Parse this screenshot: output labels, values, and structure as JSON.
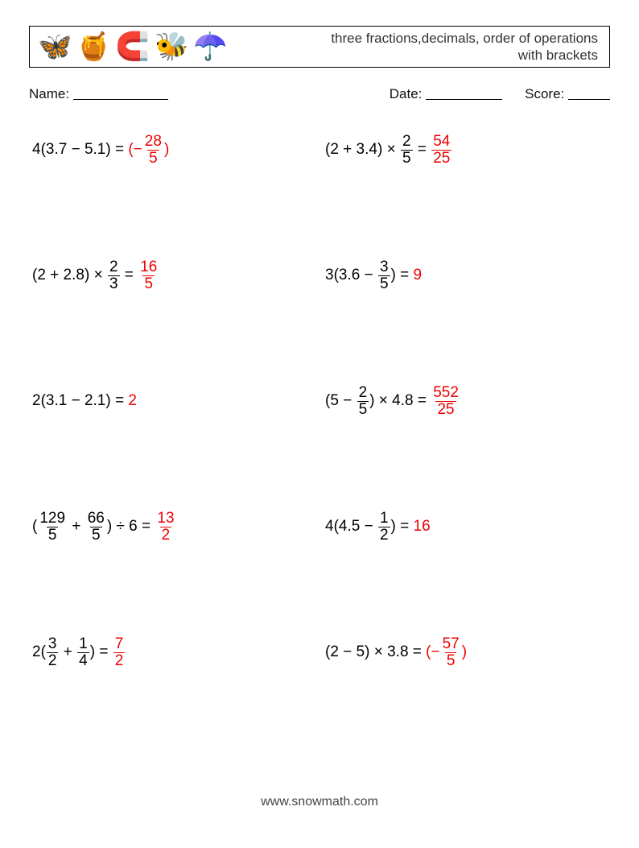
{
  "header": {
    "icons": [
      "🦋",
      "🍯",
      "🧲",
      "🐝",
      "☂️"
    ],
    "title_line1": "three fractions,decimals, order of operations",
    "title_line2": "with brackets"
  },
  "info": {
    "name_label": "Name:",
    "date_label": "Date:",
    "score_label": "Score:",
    "name_blank_width": 118,
    "date_blank_width": 95,
    "score_blank_width": 52
  },
  "colors": {
    "answer": "#ee0000",
    "text": "#000000",
    "background": "#ffffff"
  },
  "problems": [
    {
      "left": [
        {
          "t": "text",
          "v": "4(3.7 − 5.1) = "
        }
      ],
      "answer": [
        {
          "t": "text",
          "v": "(−"
        },
        {
          "t": "frac",
          "n": "28",
          "d": "5"
        },
        {
          "t": "text",
          "v": ")"
        }
      ]
    },
    {
      "left": [
        {
          "t": "text",
          "v": "(2 + 3.4) × "
        },
        {
          "t": "frac",
          "n": "2",
          "d": "5"
        },
        {
          "t": "text",
          "v": " = "
        }
      ],
      "answer": [
        {
          "t": "frac",
          "n": "54",
          "d": "25"
        }
      ]
    },
    {
      "left": [
        {
          "t": "text",
          "v": "(2 + 2.8) × "
        },
        {
          "t": "frac",
          "n": "2",
          "d": "3"
        },
        {
          "t": "text",
          "v": " = "
        }
      ],
      "answer": [
        {
          "t": "frac",
          "n": "16",
          "d": "5"
        }
      ]
    },
    {
      "left": [
        {
          "t": "text",
          "v": "3(3.6 − "
        },
        {
          "t": "frac",
          "n": "3",
          "d": "5"
        },
        {
          "t": "text",
          "v": ") = "
        }
      ],
      "answer": [
        {
          "t": "text",
          "v": "9"
        }
      ]
    },
    {
      "left": [
        {
          "t": "text",
          "v": "2(3.1 − 2.1) = "
        }
      ],
      "answer": [
        {
          "t": "text",
          "v": "2"
        }
      ]
    },
    {
      "left": [
        {
          "t": "text",
          "v": "(5 − "
        },
        {
          "t": "frac",
          "n": "2",
          "d": "5"
        },
        {
          "t": "text",
          "v": ") × 4.8 = "
        }
      ],
      "answer": [
        {
          "t": "frac",
          "n": "552",
          "d": "25"
        }
      ]
    },
    {
      "left": [
        {
          "t": "text",
          "v": "("
        },
        {
          "t": "frac",
          "n": "129",
          "d": "5"
        },
        {
          "t": "text",
          "v": " + "
        },
        {
          "t": "frac",
          "n": "66",
          "d": "5"
        },
        {
          "t": "text",
          "v": ") ÷ 6 = "
        }
      ],
      "answer": [
        {
          "t": "frac",
          "n": "13",
          "d": "2"
        }
      ]
    },
    {
      "left": [
        {
          "t": "text",
          "v": "4(4.5 − "
        },
        {
          "t": "frac",
          "n": "1",
          "d": "2"
        },
        {
          "t": "text",
          "v": ") = "
        }
      ],
      "answer": [
        {
          "t": "text",
          "v": "16"
        }
      ]
    },
    {
      "left": [
        {
          "t": "text",
          "v": "2("
        },
        {
          "t": "frac",
          "n": "3",
          "d": "2"
        },
        {
          "t": "text",
          "v": " + "
        },
        {
          "t": "frac",
          "n": "1",
          "d": "4"
        },
        {
          "t": "text",
          "v": ") = "
        }
      ],
      "answer": [
        {
          "t": "frac",
          "n": "7",
          "d": "2"
        }
      ]
    },
    {
      "left": [
        {
          "t": "text",
          "v": "(2 − 5) × 3.8 = "
        }
      ],
      "answer": [
        {
          "t": "text",
          "v": "(−"
        },
        {
          "t": "frac",
          "n": "57",
          "d": "5"
        },
        {
          "t": "text",
          "v": ")"
        }
      ]
    }
  ],
  "footer": "www.snowmath.com"
}
